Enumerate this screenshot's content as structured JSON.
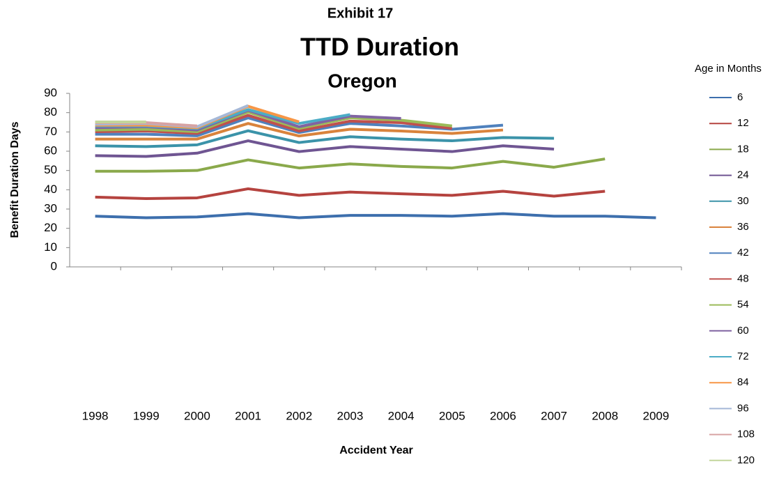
{
  "chart_data": {
    "type": "line",
    "title_lines": [
      "Exhibit 17",
      "TTD Duration",
      "Oregon"
    ],
    "x_label": "Accident Year",
    "y_label": "Benefit Duration Days",
    "legend_title": "Age in Months",
    "legend_position": "right",
    "grid": false,
    "categories": [
      "1998",
      "1999",
      "2000",
      "2001",
      "2002",
      "2003",
      "2004",
      "2005",
      "2006",
      "2007",
      "2008",
      "2009"
    ],
    "ylim": [
      0,
      90
    ],
    "yticks": [
      0,
      10,
      20,
      30,
      40,
      50,
      60,
      70,
      80,
      90
    ],
    "series": [
      {
        "name": "6",
        "color": "#3d6fad",
        "values": [
          26.3,
          25.5,
          25.9,
          27.6,
          25.5,
          26.7,
          26.7,
          26.3,
          27.6,
          26.3,
          26.3,
          25.5
        ]
      },
      {
        "name": "12",
        "color": "#b5433f",
        "values": [
          36.2,
          35.4,
          35.8,
          40.5,
          37.1,
          38.8,
          37.9,
          37.1,
          39.2,
          36.7,
          39.2,
          null
        ]
      },
      {
        "name": "18",
        "color": "#8aa94b",
        "values": [
          49.6,
          49.6,
          50.0,
          55.5,
          51.3,
          53.4,
          52.1,
          51.3,
          54.7,
          51.7,
          56.0,
          null
        ]
      },
      {
        "name": "24",
        "color": "#6f5592",
        "values": [
          57.7,
          57.3,
          59.0,
          65.4,
          59.8,
          62.4,
          61.1,
          59.8,
          62.8,
          61.1,
          null,
          null
        ]
      },
      {
        "name": "30",
        "color": "#3b93a9",
        "values": [
          62.8,
          62.4,
          63.3,
          70.6,
          64.5,
          67.5,
          66.3,
          65.4,
          67.1,
          66.7,
          null,
          null
        ]
      },
      {
        "name": "36",
        "color": "#d9833c",
        "values": [
          66.3,
          66.3,
          66.3,
          74.4,
          67.9,
          71.4,
          70.5,
          69.2,
          71.0,
          null,
          null,
          null
        ]
      },
      {
        "name": "42",
        "color": "#4f81bd",
        "values": [
          68.8,
          68.8,
          68.0,
          77.3,
          69.7,
          74.4,
          73.1,
          71.4,
          73.5,
          null,
          null,
          null
        ]
      },
      {
        "name": "48",
        "color": "#c0504d",
        "values": [
          70.1,
          70.5,
          69.2,
          78.6,
          70.5,
          75.6,
          74.8,
          71.8,
          null,
          null,
          null,
          null
        ]
      },
      {
        "name": "54",
        "color": "#9bbb59",
        "values": [
          71.0,
          71.4,
          70.1,
          80.3,
          71.8,
          77.3,
          76.1,
          73.1,
          null,
          null,
          null,
          null
        ]
      },
      {
        "name": "60",
        "color": "#8064a2",
        "values": [
          72.2,
          72.7,
          71.0,
          81.2,
          72.7,
          78.2,
          77.0,
          null,
          null,
          null,
          null,
          null
        ]
      },
      {
        "name": "72",
        "color": "#4bacc6",
        "values": [
          73.1,
          73.1,
          71.8,
          81.6,
          74.4,
          79.0,
          null,
          null,
          null,
          null,
          null,
          null
        ]
      },
      {
        "name": "84",
        "color": "#f79646",
        "values": [
          73.5,
          73.5,
          72.2,
          83.3,
          75.2,
          null,
          null,
          null,
          null,
          null,
          null,
          null
        ]
      },
      {
        "name": "96",
        "color": "#a5b8d7",
        "values": [
          74.0,
          74.4,
          72.7,
          83.7,
          null,
          null,
          null,
          null,
          null,
          null,
          null,
          null
        ]
      },
      {
        "name": "108",
        "color": "#d7a3a3",
        "values": [
          74.8,
          74.8,
          73.1,
          null,
          null,
          null,
          null,
          null,
          null,
          null,
          null,
          null
        ]
      },
      {
        "name": "120",
        "color": "#c3d69b",
        "values": [
          75.2,
          75.2,
          null,
          null,
          null,
          null,
          null,
          null,
          null,
          null,
          null,
          null
        ]
      }
    ]
  }
}
